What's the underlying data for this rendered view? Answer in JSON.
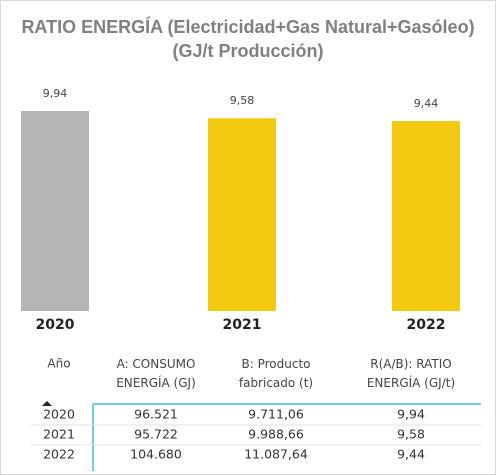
{
  "chart_data": {
    "type": "bar",
    "title": "RATIO ENERGÍA (Electricidad+Gas Natural+Gasóleo) (GJ/t Producción)",
    "categories": [
      "2020",
      "2021",
      "2022"
    ],
    "values": [
      9.94,
      9.58,
      9.44
    ],
    "value_labels": [
      "9,94",
      "9,58",
      "9,44"
    ],
    "colors": [
      "#b3b5b7",
      "#f2c811",
      "#f2c811"
    ]
  },
  "table": {
    "columns": [
      "Año",
      "A: CONSUMO ENERGÍA (GJ)",
      "B: Producto fabricado (t)",
      "R(A/B): RATIO ENERGÍA (GJ/t)"
    ],
    "rows": [
      [
        "2020",
        "96.521",
        "9.711,06",
        "9,94"
      ],
      [
        "2021",
        "95.722",
        "9.988,66",
        "9,58"
      ],
      [
        "2022",
        "104.680",
        "11.087,64",
        "9,44"
      ]
    ]
  }
}
